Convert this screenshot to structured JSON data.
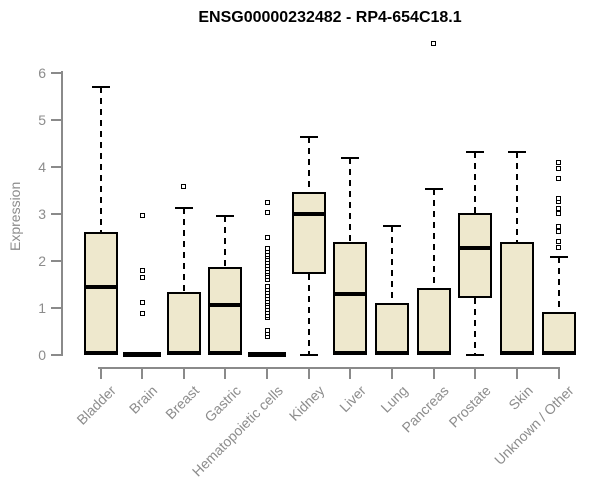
{
  "chart_data": {
    "type": "boxplot",
    "title": "ENSG00000232482 - RP4-654C18.1",
    "xlabel": "",
    "ylabel": "Expression",
    "ylim": [
      0,
      6
    ],
    "yticks": [
      0,
      1,
      2,
      3,
      4,
      5,
      6
    ],
    "grid": false,
    "legend": "none",
    "categories": [
      "Bladder",
      "Brain",
      "Breast",
      "Gastric",
      "Hematopoietic cells",
      "Kidney",
      "Liver",
      "Lung",
      "Pancreas",
      "Prostate",
      "Skin",
      "Unknown / Other"
    ],
    "series": [
      {
        "name": "Bladder",
        "low": 0,
        "q1": 0,
        "median": 1.44,
        "q3": 2.62,
        "high": 5.7,
        "outliers": []
      },
      {
        "name": "Brain",
        "low": 0,
        "q1": 0,
        "median": 0,
        "q3": 0,
        "high": 0,
        "outliers": [
          0.88,
          1.1,
          1.65,
          1.8,
          2.97
        ]
      },
      {
        "name": "Breast",
        "low": 0,
        "q1": 0,
        "median": 0.04,
        "q3": 1.33,
        "high": 3.12,
        "outliers": [
          3.58
        ]
      },
      {
        "name": "Gastric",
        "low": 0,
        "q1": 0,
        "median": 1.05,
        "q3": 1.86,
        "high": 2.95,
        "outliers": []
      },
      {
        "name": "Hematopoietic cells",
        "low": 0,
        "q1": 0,
        "median": 0,
        "q3": 0,
        "high": 0,
        "outliers": [
          0.38,
          0.45,
          0.52,
          0.78,
          0.84,
          0.9,
          0.96,
          1.02,
          1.08,
          1.14,
          1.2,
          1.26,
          1.32,
          1.38,
          1.44,
          1.6,
          1.66,
          1.72,
          1.78,
          1.84,
          1.9,
          1.96,
          2.02,
          2.08,
          2.14,
          2.2,
          2.26,
          2.5,
          3.02,
          3.24
        ]
      },
      {
        "name": "Kidney",
        "low": 0,
        "q1": 1.71,
        "median": 3.0,
        "q3": 3.47,
        "high": 4.63,
        "outliers": []
      },
      {
        "name": "Liver",
        "low": 0,
        "q1": 0,
        "median": 1.28,
        "q3": 2.4,
        "high": 4.2,
        "outliers": []
      },
      {
        "name": "Lung",
        "low": 0,
        "q1": 0,
        "median": 0.03,
        "q3": 1.1,
        "high": 2.74,
        "outliers": []
      },
      {
        "name": "Pancreas",
        "low": 0,
        "q1": 0,
        "median": 0.04,
        "q3": 1.41,
        "high": 3.53,
        "outliers": [
          6.64
        ]
      },
      {
        "name": "Prostate",
        "low": 0,
        "q1": 1.2,
        "median": 2.27,
        "q3": 3.01,
        "high": 4.31,
        "outliers": []
      },
      {
        "name": "Skin",
        "low": 0,
        "q1": 0,
        "median": 0.03,
        "q3": 2.39,
        "high": 4.32,
        "outliers": []
      },
      {
        "name": "Unknown / Other",
        "low": 0,
        "q1": 0,
        "median": 0.04,
        "q3": 0.9,
        "high": 2.08,
        "outliers": [
          2.28,
          2.4,
          2.62,
          2.72,
          3.01,
          3.12,
          3.26,
          3.33,
          3.76,
          3.97,
          4.1
        ]
      }
    ]
  },
  "colors": {
    "box_fill": "#EEE8CD",
    "box_stroke": "#000000",
    "axis_line": "#8A8A8A",
    "axis_text": "#8C8C8C",
    "title_text": "#000000",
    "background": "#FFFFFF"
  }
}
